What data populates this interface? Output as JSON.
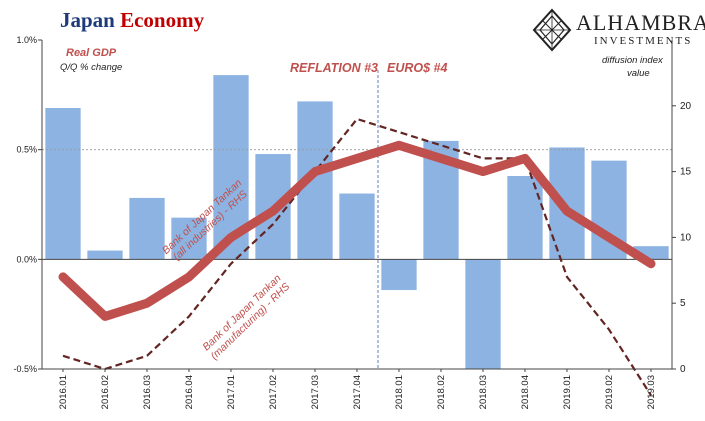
{
  "header": {
    "title_part1": "Japan",
    "title_part2": "Economy"
  },
  "logo": {
    "name": "ALHAMBRA",
    "subtitle": "INVESTMENTS",
    "icon": "diamond-lattice-icon"
  },
  "labels": {
    "gdp_title": "Real GDP",
    "gdp_sub": "Q/Q % change",
    "rhs_title_line1": "diffusion index",
    "rhs_title_line2": "value",
    "reflation": "REFLATION #3",
    "euro": "EURO$ #4",
    "tankan_all_line1": "Bank of Japan Tankan",
    "tankan_all_line2": "(all industries) - RHS",
    "tankan_mfg_line1": "Bank of Japan Tankan",
    "tankan_mfg_line2": "(manufacturing) - RHS"
  },
  "colors": {
    "bar": "#8db3e2",
    "all_industries": "#c0504d",
    "manufacturing": "#632523",
    "title_blue": "#1f3a7a",
    "title_red": "#c00000"
  },
  "chart_data": {
    "type": "bar",
    "categories": [
      "2016.Q1",
      "2016.Q2",
      "2016.Q3",
      "2016.Q4",
      "2017.Q1",
      "2017.Q2",
      "2017.Q3",
      "2017.Q4",
      "2018.Q1",
      "2018.Q2",
      "2018.Q3",
      "2018.Q4",
      "2019.Q1",
      "2019.Q2",
      "2019.Q3"
    ],
    "series": [
      {
        "name": "Real GDP",
        "axis": "left",
        "type": "bar",
        "values": [
          0.69,
          0.04,
          0.28,
          0.19,
          0.84,
          0.48,
          0.72,
          0.3,
          -0.14,
          0.54,
          -0.5,
          0.38,
          0.51,
          0.45,
          0.06
        ]
      },
      {
        "name": "Bank of Japan Tankan (all industries) - RHS",
        "axis": "right",
        "type": "line",
        "values": [
          7,
          4,
          5,
          7,
          10,
          12,
          15,
          16,
          17,
          16,
          15,
          16,
          12,
          10,
          8
        ]
      },
      {
        "name": "Bank of Japan Tankan (manufacturing) - RHS",
        "axis": "right",
        "type": "line",
        "dashed": true,
        "values": [
          1,
          0,
          1,
          4,
          8,
          11,
          15,
          19,
          18,
          17,
          16,
          16,
          7,
          3,
          -2
        ]
      }
    ],
    "y_left": {
      "ylim": [
        -0.5,
        1.0
      ],
      "ticks": [
        "1.0%",
        "0.5%",
        "0.0%",
        "-0.5%"
      ],
      "tick_values": [
        1.0,
        0.5,
        0.0,
        -0.5
      ]
    },
    "y_right": {
      "ylim": [
        0,
        25
      ],
      "ticks": [
        "0",
        "5",
        "10",
        "15",
        "20"
      ],
      "tick_values": [
        0,
        5,
        10,
        15,
        20
      ]
    },
    "x_tick_labels": [
      "2016.01",
      "2016.02",
      "2016.03",
      "2016.04",
      "2017.01",
      "2017.02",
      "2017.03",
      "2017.04",
      "2018.01",
      "2018.02",
      "2018.03",
      "2018.04",
      "2019.01",
      "2019.02",
      "2019.03"
    ],
    "annotations": {
      "divider_between_categories": [
        7,
        8
      ]
    },
    "grid": "dashed line at 0.5%"
  }
}
